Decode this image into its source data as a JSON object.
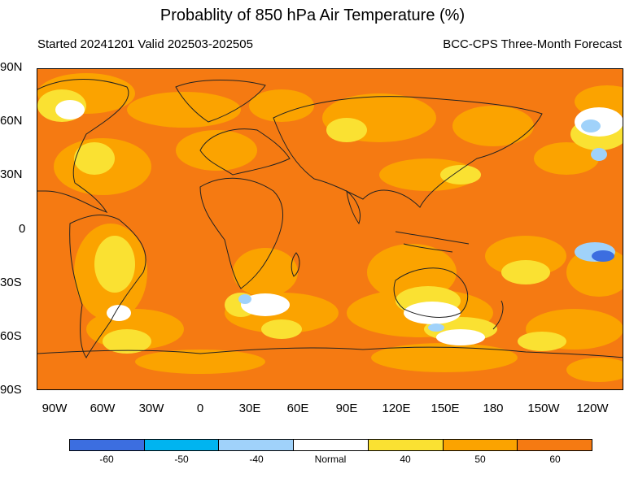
{
  "title": "Probablity of 850 hPa Air Temperature (%)",
  "subtitle_left": "Started 20241201  Valid 202503-202505",
  "subtitle_right": "BCC-CPS Three-Month Forecast",
  "lat_labels": [
    "90N",
    "60N",
    "30N",
    "0",
    "30S",
    "60S",
    "90S"
  ],
  "lon_labels": [
    "90W",
    "60W",
    "30W",
    "0",
    "30E",
    "60E",
    "90E",
    "120E",
    "150E",
    "180",
    "150W",
    "120W"
  ],
  "legend": {
    "labels": [
      "-60",
      "-50",
      "-40",
      "Normal",
      "40",
      "50",
      "60"
    ],
    "colors": [
      "#3c6ee0",
      "#00b4f0",
      "#a0d2fa",
      "#ffffff",
      "#fae132",
      "#fba300",
      "#f57a12"
    ]
  },
  "map_colors": {
    "ocean_bg": "#f57a12",
    "mid": "#fba300",
    "low": "#fae132",
    "normal": "#ffffff",
    "cold_40": "#a0d2fa",
    "cold_50": "#00b4f0",
    "cold_60": "#3c6ee0",
    "coast": "#222222"
  }
}
